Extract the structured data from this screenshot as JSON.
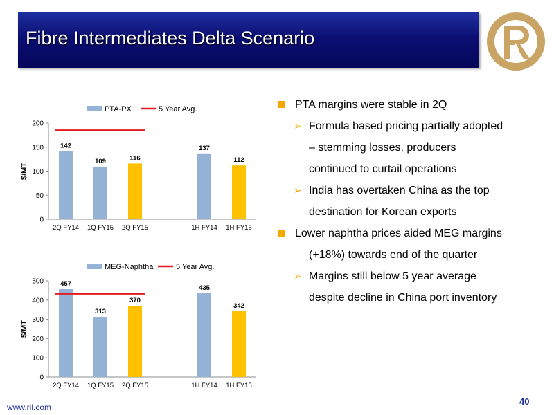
{
  "slide": {
    "title": "Fibre Intermediates Delta Scenario",
    "footer_url": "www.ril.com",
    "page_number": "40"
  },
  "colors": {
    "bar_past": "#95b3d7",
    "bar_current": "#ffc000",
    "avg_line": "#e31b23",
    "bullet": "#f5a800",
    "logo": "#c9a464"
  },
  "bullets": [
    {
      "level": 1,
      "text": "PTA margins were stable in 2Q"
    },
    {
      "level": 2,
      "text": "Formula based pricing partially adopted"
    },
    {
      "level": 3,
      "text": "– stemming losses, producers"
    },
    {
      "level": 3,
      "text": "continued to curtail operations"
    },
    {
      "level": 2,
      "text": "India has overtaken China as the top"
    },
    {
      "level": 3,
      "text": "destination for Korean exports"
    },
    {
      "level": 1,
      "text": "Lower naphtha prices aided MEG margins"
    },
    {
      "level": 3,
      "text": "(+18%) towards end of the quarter"
    },
    {
      "level": 2,
      "text": "Margins still below 5 year average"
    },
    {
      "level": 3,
      "text": "despite decline in China port inventory"
    }
  ],
  "chart_data": [
    {
      "type": "bar",
      "categories": [
        "2Q FY14",
        "1Q FY15",
        "2Q FY15",
        "",
        "1H FY14",
        "1H FY15"
      ],
      "series": [
        {
          "name": "PTA-PX",
          "values": [
            142,
            109,
            116,
            null,
            137,
            112
          ]
        }
      ],
      "highlight": [
        false,
        false,
        true,
        false,
        false,
        true
      ],
      "data_labels": [
        "142",
        "109",
        "116",
        "",
        "137",
        "112"
      ],
      "avg_line": {
        "name": "5 Year Avg.",
        "value": 185,
        "from_category": 0,
        "to_category": 2
      },
      "ylabel": "$/MT",
      "ylim": [
        0,
        200
      ],
      "yticks": [
        0,
        50,
        100,
        150,
        200
      ],
      "ytick_labels": [
        "0",
        "50",
        "100",
        "150",
        "200"
      ],
      "legend": "top",
      "grid": false
    },
    {
      "type": "bar",
      "categories": [
        "2Q FY14",
        "1Q FY15",
        "2Q FY15",
        "",
        "1H FY14",
        "1H FY15"
      ],
      "series": [
        {
          "name": "MEG-Naphtha",
          "values": [
            457,
            313,
            370,
            null,
            435,
            342
          ]
        }
      ],
      "highlight": [
        false,
        false,
        true,
        false,
        false,
        true
      ],
      "data_labels": [
        "457",
        "313",
        "370",
        "",
        "435",
        "342"
      ],
      "avg_line": {
        "name": "5 Year Avg.",
        "value": 433,
        "from_category": 0,
        "to_category": 2
      },
      "ylabel": "$/MT",
      "ylim": [
        0,
        500
      ],
      "yticks": [
        0,
        100,
        200,
        300,
        400,
        500
      ],
      "ytick_labels": [
        "0",
        "100",
        "200",
        "300",
        "400",
        "500"
      ],
      "legend": "top",
      "grid": false
    }
  ]
}
